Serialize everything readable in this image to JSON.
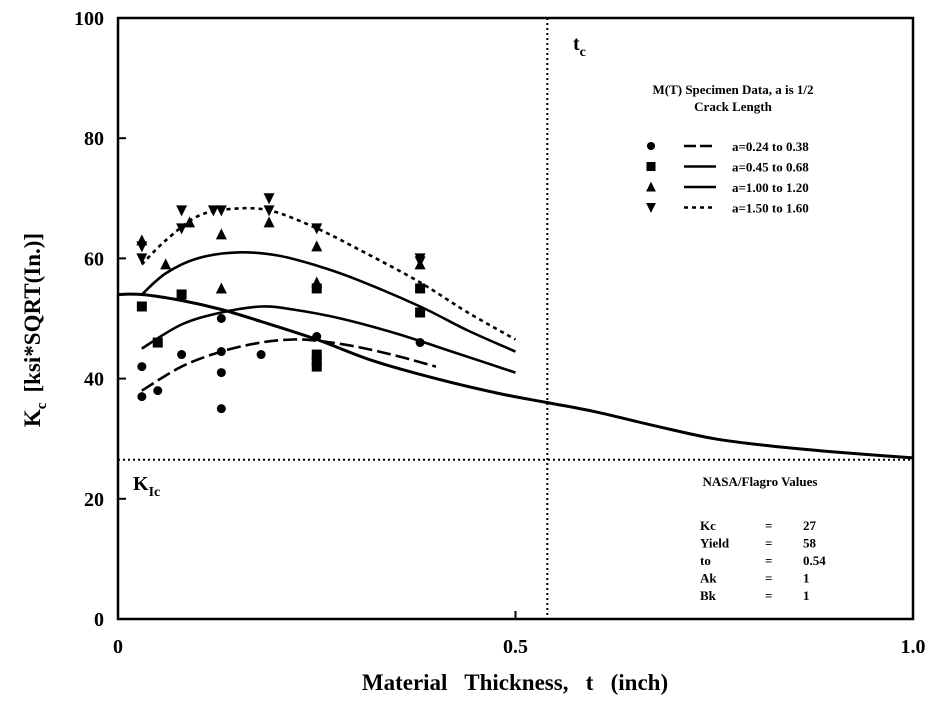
{
  "chart_data": {
    "type": "scatter",
    "xlabel": "Material   Thickness,   t   (inch)",
    "ylabel": "Kc  [ksi*SQRT(In.)]",
    "ylabel_main": "K",
    "ylabel_sub": "c",
    "ylabel_rest": "[ksi*SQRT(In.)]",
    "xlim": [
      0,
      1.0
    ],
    "ylim": [
      0,
      100
    ],
    "x_ticks": [
      {
        "value": 0,
        "label": "0"
      },
      {
        "value": 0.5,
        "label": "0.5"
      },
      {
        "value": 1.0,
        "label": "1.0"
      }
    ],
    "y_ticks": [
      {
        "value": 0,
        "label": "0"
      },
      {
        "value": 20,
        "label": "20"
      },
      {
        "value": 40,
        "label": "40"
      },
      {
        "value": 60,
        "label": "60"
      },
      {
        "value": 80,
        "label": "80"
      },
      {
        "value": 100,
        "label": "100"
      }
    ],
    "legend_title_line1": "M(T) Specimen Data, a is 1/2",
    "legend_title_line2": "Crack Length",
    "series": [
      {
        "name": "a=0.24 to 0.38",
        "marker": "circle",
        "line": "long-dash",
        "points": [
          [
            0.03,
            42
          ],
          [
            0.03,
            37
          ],
          [
            0.05,
            38
          ],
          [
            0.08,
            44
          ],
          [
            0.13,
            50
          ],
          [
            0.13,
            44.5
          ],
          [
            0.13,
            41
          ],
          [
            0.13,
            35
          ],
          [
            0.18,
            44
          ],
          [
            0.25,
            47
          ],
          [
            0.38,
            46
          ]
        ],
        "curve": [
          [
            0.03,
            38
          ],
          [
            0.08,
            42
          ],
          [
            0.13,
            44.5
          ],
          [
            0.18,
            46
          ],
          [
            0.22,
            46.5
          ],
          [
            0.25,
            46.3
          ],
          [
            0.3,
            45.3
          ],
          [
            0.35,
            43.8
          ],
          [
            0.4,
            42
          ]
        ]
      },
      {
        "name": "a=0.45 to 0.68",
        "marker": "square",
        "line": "solid",
        "points": [
          [
            0.03,
            52
          ],
          [
            0.05,
            46
          ],
          [
            0.08,
            54
          ],
          [
            0.25,
            44
          ],
          [
            0.25,
            43
          ],
          [
            0.25,
            42
          ],
          [
            0.25,
            55
          ],
          [
            0.38,
            55
          ],
          [
            0.38,
            51
          ]
        ],
        "curve": [
          [
            0.03,
            45
          ],
          [
            0.08,
            49
          ],
          [
            0.13,
            51
          ],
          [
            0.18,
            52
          ],
          [
            0.22,
            51.5
          ],
          [
            0.28,
            50
          ],
          [
            0.35,
            47.5
          ],
          [
            0.42,
            44.5
          ],
          [
            0.5,
            41
          ]
        ]
      },
      {
        "name": "a=1.00 to 1.20",
        "marker": "triangle",
        "line": "solid",
        "points": [
          [
            0.03,
            63
          ],
          [
            0.06,
            59
          ],
          [
            0.09,
            66
          ],
          [
            0.13,
            64
          ],
          [
            0.13,
            55
          ],
          [
            0.19,
            66
          ],
          [
            0.25,
            62
          ],
          [
            0.25,
            56
          ],
          [
            0.38,
            59
          ]
        ],
        "curve": [
          [
            0.03,
            54
          ],
          [
            0.06,
            57.5
          ],
          [
            0.1,
            60
          ],
          [
            0.15,
            61
          ],
          [
            0.2,
            60.5
          ],
          [
            0.25,
            58.8
          ],
          [
            0.3,
            56.5
          ],
          [
            0.38,
            52
          ],
          [
            0.44,
            48
          ],
          [
            0.5,
            44.5
          ]
        ]
      },
      {
        "name": "a=1.50 to 1.60",
        "marker": "triangle-down",
        "line": "dotted",
        "points": [
          [
            0.03,
            62
          ],
          [
            0.03,
            60
          ],
          [
            0.08,
            68
          ],
          [
            0.08,
            65
          ],
          [
            0.12,
            68
          ],
          [
            0.13,
            68
          ],
          [
            0.19,
            70
          ],
          [
            0.19,
            68
          ],
          [
            0.25,
            65
          ],
          [
            0.38,
            60
          ],
          [
            0.38,
            59.5
          ]
        ],
        "curve": [
          [
            0.03,
            59
          ],
          [
            0.06,
            63
          ],
          [
            0.1,
            67
          ],
          [
            0.14,
            68.2
          ],
          [
            0.19,
            68
          ],
          [
            0.25,
            65
          ],
          [
            0.31,
            61
          ],
          [
            0.38,
            56
          ],
          [
            0.44,
            51
          ],
          [
            0.5,
            46.5
          ]
        ]
      }
    ],
    "flagro_curve": [
      [
        0.0,
        54
      ],
      [
        0.03,
        54
      ],
      [
        0.08,
        53
      ],
      [
        0.13,
        51.5
      ],
      [
        0.18,
        49.5
      ],
      [
        0.25,
        46.5
      ],
      [
        0.32,
        43
      ],
      [
        0.4,
        40
      ],
      [
        0.48,
        37.5
      ],
      [
        0.54,
        36
      ],
      [
        0.6,
        34.5
      ],
      [
        0.68,
        32
      ],
      [
        0.75,
        30
      ],
      [
        0.82,
        28.8
      ],
      [
        0.9,
        27.8
      ],
      [
        1.0,
        26.8
      ]
    ],
    "kic_line": {
      "value": 26.5,
      "label_main": "K",
      "label_sub": "Ic"
    },
    "tc_line": {
      "value": 0.54,
      "label_main": "t",
      "label_sub": "c"
    },
    "params_title": "NASA/Flagro  Values",
    "params": [
      {
        "name": "Kc",
        "eq": "=",
        "value": "27"
      },
      {
        "name": "Yield",
        "eq": "=",
        "value": "58"
      },
      {
        "name": "to",
        "eq": "=",
        "value": "0.54"
      },
      {
        "name": "Ak",
        "eq": "=",
        "value": "1"
      },
      {
        "name": "Bk",
        "eq": "=",
        "value": "1"
      }
    ],
    "grid": false
  }
}
